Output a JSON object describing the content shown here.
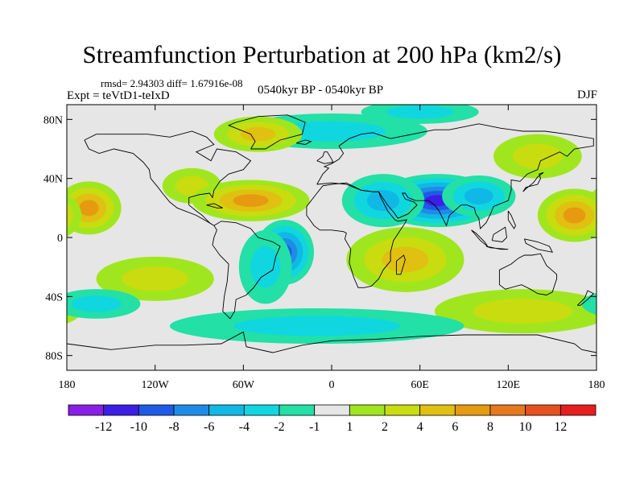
{
  "chart_data": {
    "type": "heatmap",
    "title": "Streamfunction Perturbation at 200 hPa (km2/s)",
    "stats_line": "rmsd= 2.94303  diff= 1.67916e-08",
    "experiment": "Expt = teVtD1-teIxD",
    "period": "0540kyr BP - 0540kyr BP",
    "season": "DJF",
    "x_ticks": [
      {
        "value": -180,
        "label": "180"
      },
      {
        "value": -120,
        "label": "120W"
      },
      {
        "value": -60,
        "label": "60W"
      },
      {
        "value": 0,
        "label": "0"
      },
      {
        "value": 60,
        "label": "60E"
      },
      {
        "value": 120,
        "label": "120E"
      },
      {
        "value": 180,
        "label": "180"
      }
    ],
    "y_ticks": [
      {
        "value": 80,
        "label": "80N"
      },
      {
        "value": 40,
        "label": "40N"
      },
      {
        "value": 0,
        "label": "0"
      },
      {
        "value": -40,
        "label": "40S"
      },
      {
        "value": -80,
        "label": "80S"
      }
    ],
    "xlim": [
      -180,
      180
    ],
    "ylim": [
      -90,
      90
    ],
    "colorbar": {
      "colors": [
        "#8a1ee6",
        "#3c1ee6",
        "#1e5ae6",
        "#1e8ce6",
        "#10b8e6",
        "#10d6e0",
        "#22e0a6",
        "#e6e6e6",
        "#a0e61e",
        "#c8dc10",
        "#e0c010",
        "#e69a10",
        "#e6781e",
        "#e6501e",
        "#e61e1e"
      ],
      "labels": [
        "-12",
        "-10",
        "-8",
        "-6",
        "-4",
        "-2",
        "-1",
        "1",
        "2",
        "4",
        "6",
        "8",
        "10",
        "12"
      ]
    },
    "blobs": [
      {
        "lon": 72,
        "lat": 25,
        "rlon": 42,
        "rlat": 18,
        "v": -11
      },
      {
        "lon": 35,
        "lat": 25,
        "rlon": 28,
        "rlat": 18,
        "v": -4
      },
      {
        "lon": 100,
        "lat": 28,
        "rlon": 25,
        "rlat": 14,
        "v": -4
      },
      {
        "lon": -32,
        "lat": -10,
        "rlon": 20,
        "rlat": 22,
        "v": -9
      },
      {
        "lon": -45,
        "lat": -20,
        "rlon": 18,
        "rlat": 25,
        "v": -3
      },
      {
        "lon": -95,
        "lat": 35,
        "rlon": 20,
        "rlat": 12,
        "v": 3
      },
      {
        "lon": -55,
        "lat": 25,
        "rlon": 40,
        "rlat": 14,
        "v": 6
      },
      {
        "lon": -165,
        "lat": 20,
        "rlon": 22,
        "rlat": 18,
        "v": 7
      },
      {
        "lon": 165,
        "lat": 15,
        "rlon": 25,
        "rlat": 18,
        "v": 6
      },
      {
        "lon": -120,
        "lat": -28,
        "rlon": 40,
        "rlat": 15,
        "v": 2
      },
      {
        "lon": 50,
        "lat": -15,
        "rlon": 40,
        "rlat": 22,
        "v": 5
      },
      {
        "lon": 130,
        "lat": -50,
        "rlon": 60,
        "rlat": 15,
        "v": 3
      },
      {
        "lon": 0,
        "lat": 72,
        "rlon": 65,
        "rlat": 12,
        "v": -3
      },
      {
        "lon": -50,
        "lat": 70,
        "rlon": 30,
        "rlat": 12,
        "v": 5
      },
      {
        "lon": 60,
        "lat": 85,
        "rlon": 40,
        "rlat": 8,
        "v": -2
      },
      {
        "lon": -10,
        "lat": -60,
        "rlon": 100,
        "rlat": 12,
        "v": -2
      },
      {
        "lon": -160,
        "lat": -45,
        "rlon": 30,
        "rlat": 10,
        "v": -2
      },
      {
        "lon": 140,
        "lat": 55,
        "rlon": 30,
        "rlat": 15,
        "v": 2
      }
    ]
  }
}
